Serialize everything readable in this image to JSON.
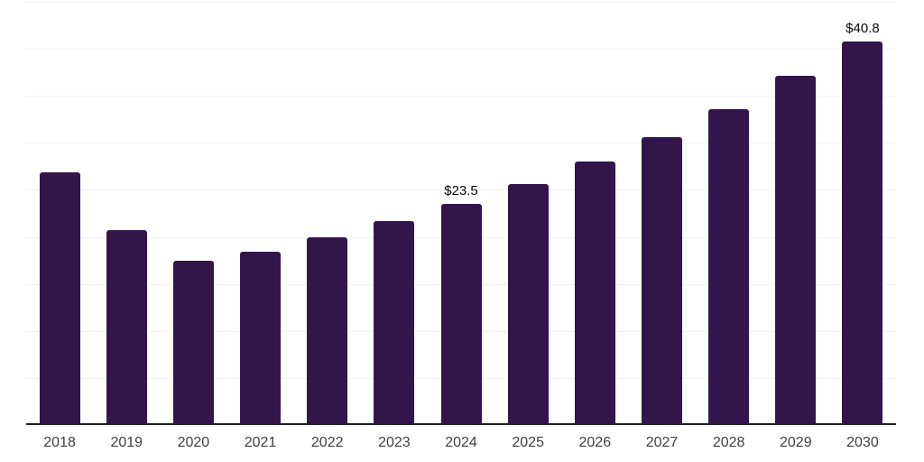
{
  "chart_data": {
    "type": "bar",
    "categories": [
      "2018",
      "2019",
      "2020",
      "2021",
      "2022",
      "2023",
      "2024",
      "2025",
      "2026",
      "2027",
      "2028",
      "2029",
      "2030"
    ],
    "values": [
      26.9,
      20.7,
      17.5,
      18.4,
      20.0,
      21.7,
      23.5,
      25.6,
      28.0,
      30.6,
      33.6,
      37.1,
      40.8
    ],
    "data_labels": [
      "",
      "",
      "",
      "",
      "",
      "",
      "$23.5",
      "",
      "",
      "",
      "",
      "",
      "$40.8"
    ],
    "title": "",
    "xlabel": "",
    "ylabel": "",
    "ylim": [
      0,
      45
    ],
    "grid_step": 5,
    "grid": "horizontal",
    "y_tick_labels_visible": false,
    "legend": "none",
    "colors": {
      "bar": "#32164b",
      "gridline": "#f2f2f2",
      "axis_line": "#222222",
      "tick_label": "#404040",
      "data_label": "#0a0a0a",
      "background": "#ffffff"
    }
  }
}
